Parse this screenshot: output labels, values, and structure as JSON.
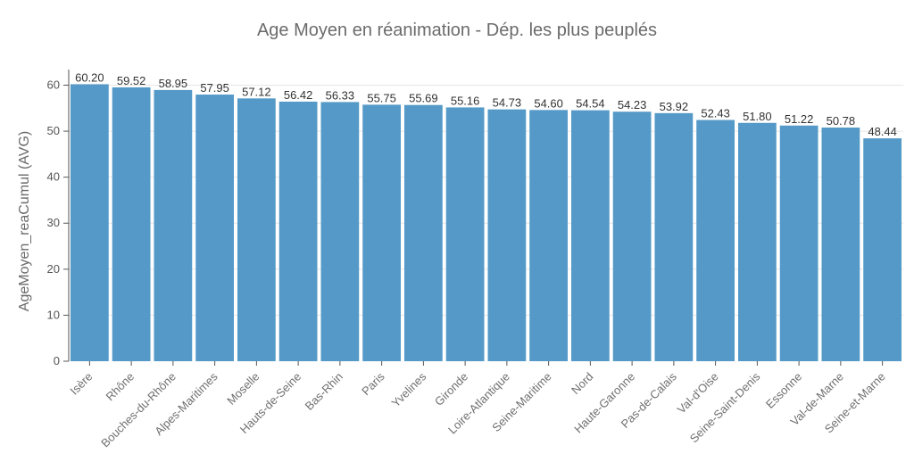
{
  "chart_data": {
    "type": "bar",
    "title": "Age Moyen en réanimation  - Dép. les plus peuplés",
    "xlabel": "",
    "ylabel": "AgeMoyen_reaCumul (AVG)",
    "ylim": [
      0,
      63
    ],
    "yticks": [
      0,
      10,
      20,
      30,
      40,
      50,
      60
    ],
    "grid": true,
    "bar_color": "#5499c7",
    "categories": [
      "Isère",
      "Rhône",
      "Bouches-du-Rhône",
      "Alpes-Maritimes",
      "Moselle",
      "Hauts-de-Seine",
      "Bas-Rhin",
      "Paris",
      "Yvelines",
      "Gironde",
      "Loire-Atlantique",
      "Seine-Maritime",
      "Nord",
      "Haute-Garonne",
      "Pas-de-Calais",
      "Val-d'Oise",
      "Seine-Saint-Denis",
      "Essonne",
      "Val-de-Marne",
      "Seine-et-Marne"
    ],
    "values": [
      60.2,
      59.52,
      58.95,
      57.95,
      57.12,
      56.42,
      56.33,
      55.75,
      55.69,
      55.16,
      54.73,
      54.6,
      54.54,
      54.23,
      53.92,
      52.43,
      51.8,
      51.22,
      50.78,
      48.44
    ],
    "value_labels": [
      "60.20",
      "59.52",
      "58.95",
      "57.95",
      "57.12",
      "56.42",
      "56.33",
      "55.75",
      "55.69",
      "55.16",
      "54.73",
      "54.60",
      "54.54",
      "54.23",
      "53.92",
      "52.43",
      "51.80",
      "51.22",
      "50.78",
      "48.44"
    ]
  }
}
